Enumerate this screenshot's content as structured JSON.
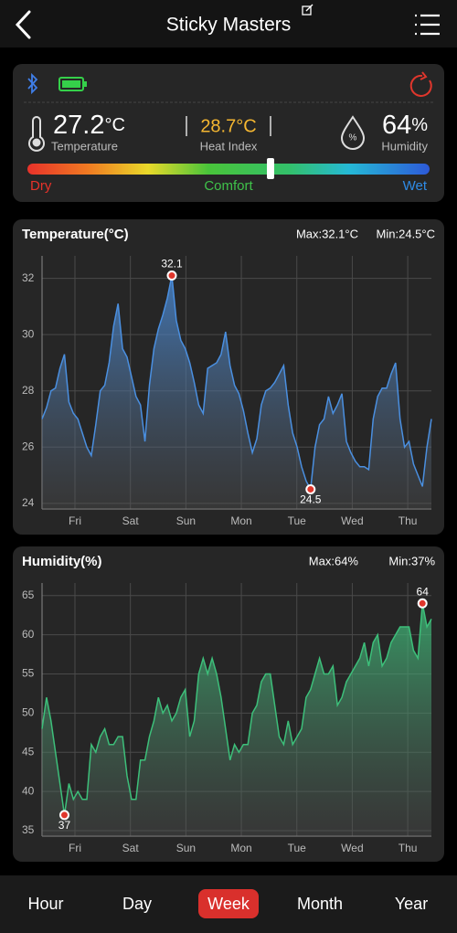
{
  "header": {
    "title": "Sticky Masters"
  },
  "status": {
    "temperature": {
      "value": "27.2",
      "unit": "°C",
      "label": "Temperature"
    },
    "heat_index": {
      "value": "28.7°C",
      "label": "Heat Index"
    },
    "humidity": {
      "value": "64",
      "unit": "%",
      "label": "Humidity"
    },
    "scale": {
      "low": "Dry",
      "mid": "Comfort",
      "high": "Wet"
    }
  },
  "temperature_chart": {
    "type": "line",
    "title": "Temperature(°C)",
    "max_label": "Max:32.1°C",
    "min_label": "Min:24.5°C",
    "color": "#4a8fe0",
    "grid": true,
    "categories": [
      "Fri",
      "Sat",
      "Sun",
      "Mon",
      "Tue",
      "Wed",
      "Thu"
    ],
    "ylim": [
      23.8,
      32.8
    ],
    "yticks": [
      24,
      26,
      28,
      30,
      32
    ],
    "values": [
      27.0,
      27.4,
      28.0,
      28.1,
      28.8,
      29.3,
      27.6,
      27.2,
      27.0,
      26.5,
      26.0,
      25.7,
      26.8,
      28.0,
      28.2,
      29.0,
      30.3,
      31.1,
      29.5,
      29.2,
      28.5,
      27.8,
      27.5,
      26.2,
      28.2,
      29.5,
      30.2,
      30.7,
      31.3,
      32.1,
      30.5,
      29.8,
      29.5,
      29.0,
      28.3,
      27.5,
      27.2,
      28.8,
      28.9,
      29.0,
      29.3,
      30.1,
      28.9,
      28.2,
      27.9,
      27.3,
      26.5,
      25.8,
      26.3,
      27.5,
      28.0,
      28.1,
      28.3,
      28.6,
      28.9,
      27.5,
      26.5,
      26.0,
      25.3,
      24.8,
      24.5,
      26.0,
      26.8,
      27.0,
      27.8,
      27.2,
      27.5,
      27.9,
      26.2,
      25.8,
      25.5,
      25.3,
      25.3,
      25.2,
      27.0,
      27.8,
      28.1,
      28.1,
      28.6,
      29.0,
      27.0,
      26.0,
      26.2,
      25.4,
      25.0,
      24.6,
      26.0,
      27.0
    ]
  },
  "humidity_chart": {
    "type": "line",
    "title": "Humidity(%)",
    "max_label": "Max:64%",
    "min_label": "Min:37%",
    "color": "#3dbf7a",
    "grid": true,
    "categories": [
      "Fri",
      "Sat",
      "Sun",
      "Mon",
      "Tue",
      "Wed",
      "Thu"
    ],
    "ylim": [
      34.3,
      66.6
    ],
    "yticks": [
      35,
      40,
      45,
      50,
      55,
      60,
      65
    ],
    "values": [
      48,
      52,
      49,
      45,
      41,
      37,
      41,
      39,
      40,
      39,
      39,
      46,
      45,
      47,
      48,
      46,
      46,
      47,
      47,
      42,
      39,
      39,
      44,
      44,
      47,
      49,
      52,
      50,
      51,
      49,
      50,
      52,
      53,
      47,
      49,
      55,
      57,
      55,
      57,
      55,
      52,
      48,
      44,
      46,
      45,
      46,
      46,
      50,
      51,
      54,
      55,
      55,
      51,
      47,
      46,
      49,
      46,
      47,
      48,
      52,
      53,
      55,
      57,
      55,
      55,
      56,
      51,
      52,
      54,
      55,
      56,
      57,
      59,
      56,
      59,
      60,
      56,
      57,
      59,
      60,
      61,
      61,
      61,
      58,
      57,
      64,
      61,
      62
    ]
  },
  "tabs": [
    "Hour",
    "Day",
    "Week",
    "Month",
    "Year"
  ],
  "selected_tab": 2
}
